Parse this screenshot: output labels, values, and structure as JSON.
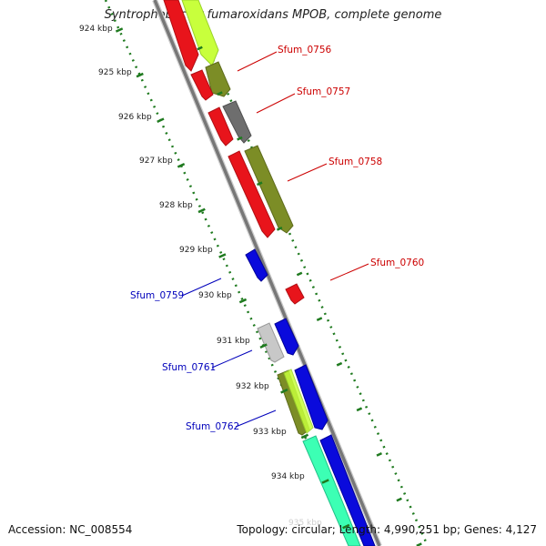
{
  "title": "Syntrophobacter fumaroxidans MPOB, complete genome",
  "footer": {
    "accession": "Accession: NC_008554",
    "topology": "Topology: circular; Length: 4,990,251 bp; Genes: 4,127"
  },
  "ticks": [
    {
      "label": "924 kbp",
      "kbp": 924
    },
    {
      "label": "925 kbp",
      "kbp": 925
    },
    {
      "label": "926 kbp",
      "kbp": 926
    },
    {
      "label": "927 kbp",
      "kbp": 927
    },
    {
      "label": "928 kbp",
      "kbp": 928
    },
    {
      "label": "929 kbp",
      "kbp": 929
    },
    {
      "label": "930 kbp",
      "kbp": 930
    },
    {
      "label": "931 kbp",
      "kbp": 931
    },
    {
      "label": "932 kbp",
      "kbp": 932
    },
    {
      "label": "933 kbp",
      "kbp": 933
    },
    {
      "label": "934 kbp",
      "kbp": 934
    },
    {
      "label": "935 kbp",
      "kbp": 935
    }
  ],
  "gene_labels": [
    {
      "text": "Sfum_0756",
      "color": "#cc0000",
      "side": "right"
    },
    {
      "text": "Sfum_0757",
      "color": "#cc0000",
      "side": "right"
    },
    {
      "text": "Sfum_0758",
      "color": "#cc0000",
      "side": "right"
    },
    {
      "text": "Sfum_0759",
      "color": "#0000bb",
      "side": "left"
    },
    {
      "text": "Sfum_0760",
      "color": "#cc0000",
      "side": "right"
    },
    {
      "text": "Sfum_0761",
      "color": "#0000bb",
      "side": "left"
    },
    {
      "text": "Sfum_0762",
      "color": "#0000bb",
      "side": "left"
    }
  ],
  "colors": {
    "red": "#e8141b",
    "lime": "#c8ff3c",
    "olive": "#7c8d26",
    "darkgray": "#6e6e6e",
    "lightgray": "#c8c8c8",
    "blue": "#0a0adc",
    "mint": "#3cffb4",
    "backbone": "#8a8a8a",
    "tick": "#1f7a1f"
  }
}
